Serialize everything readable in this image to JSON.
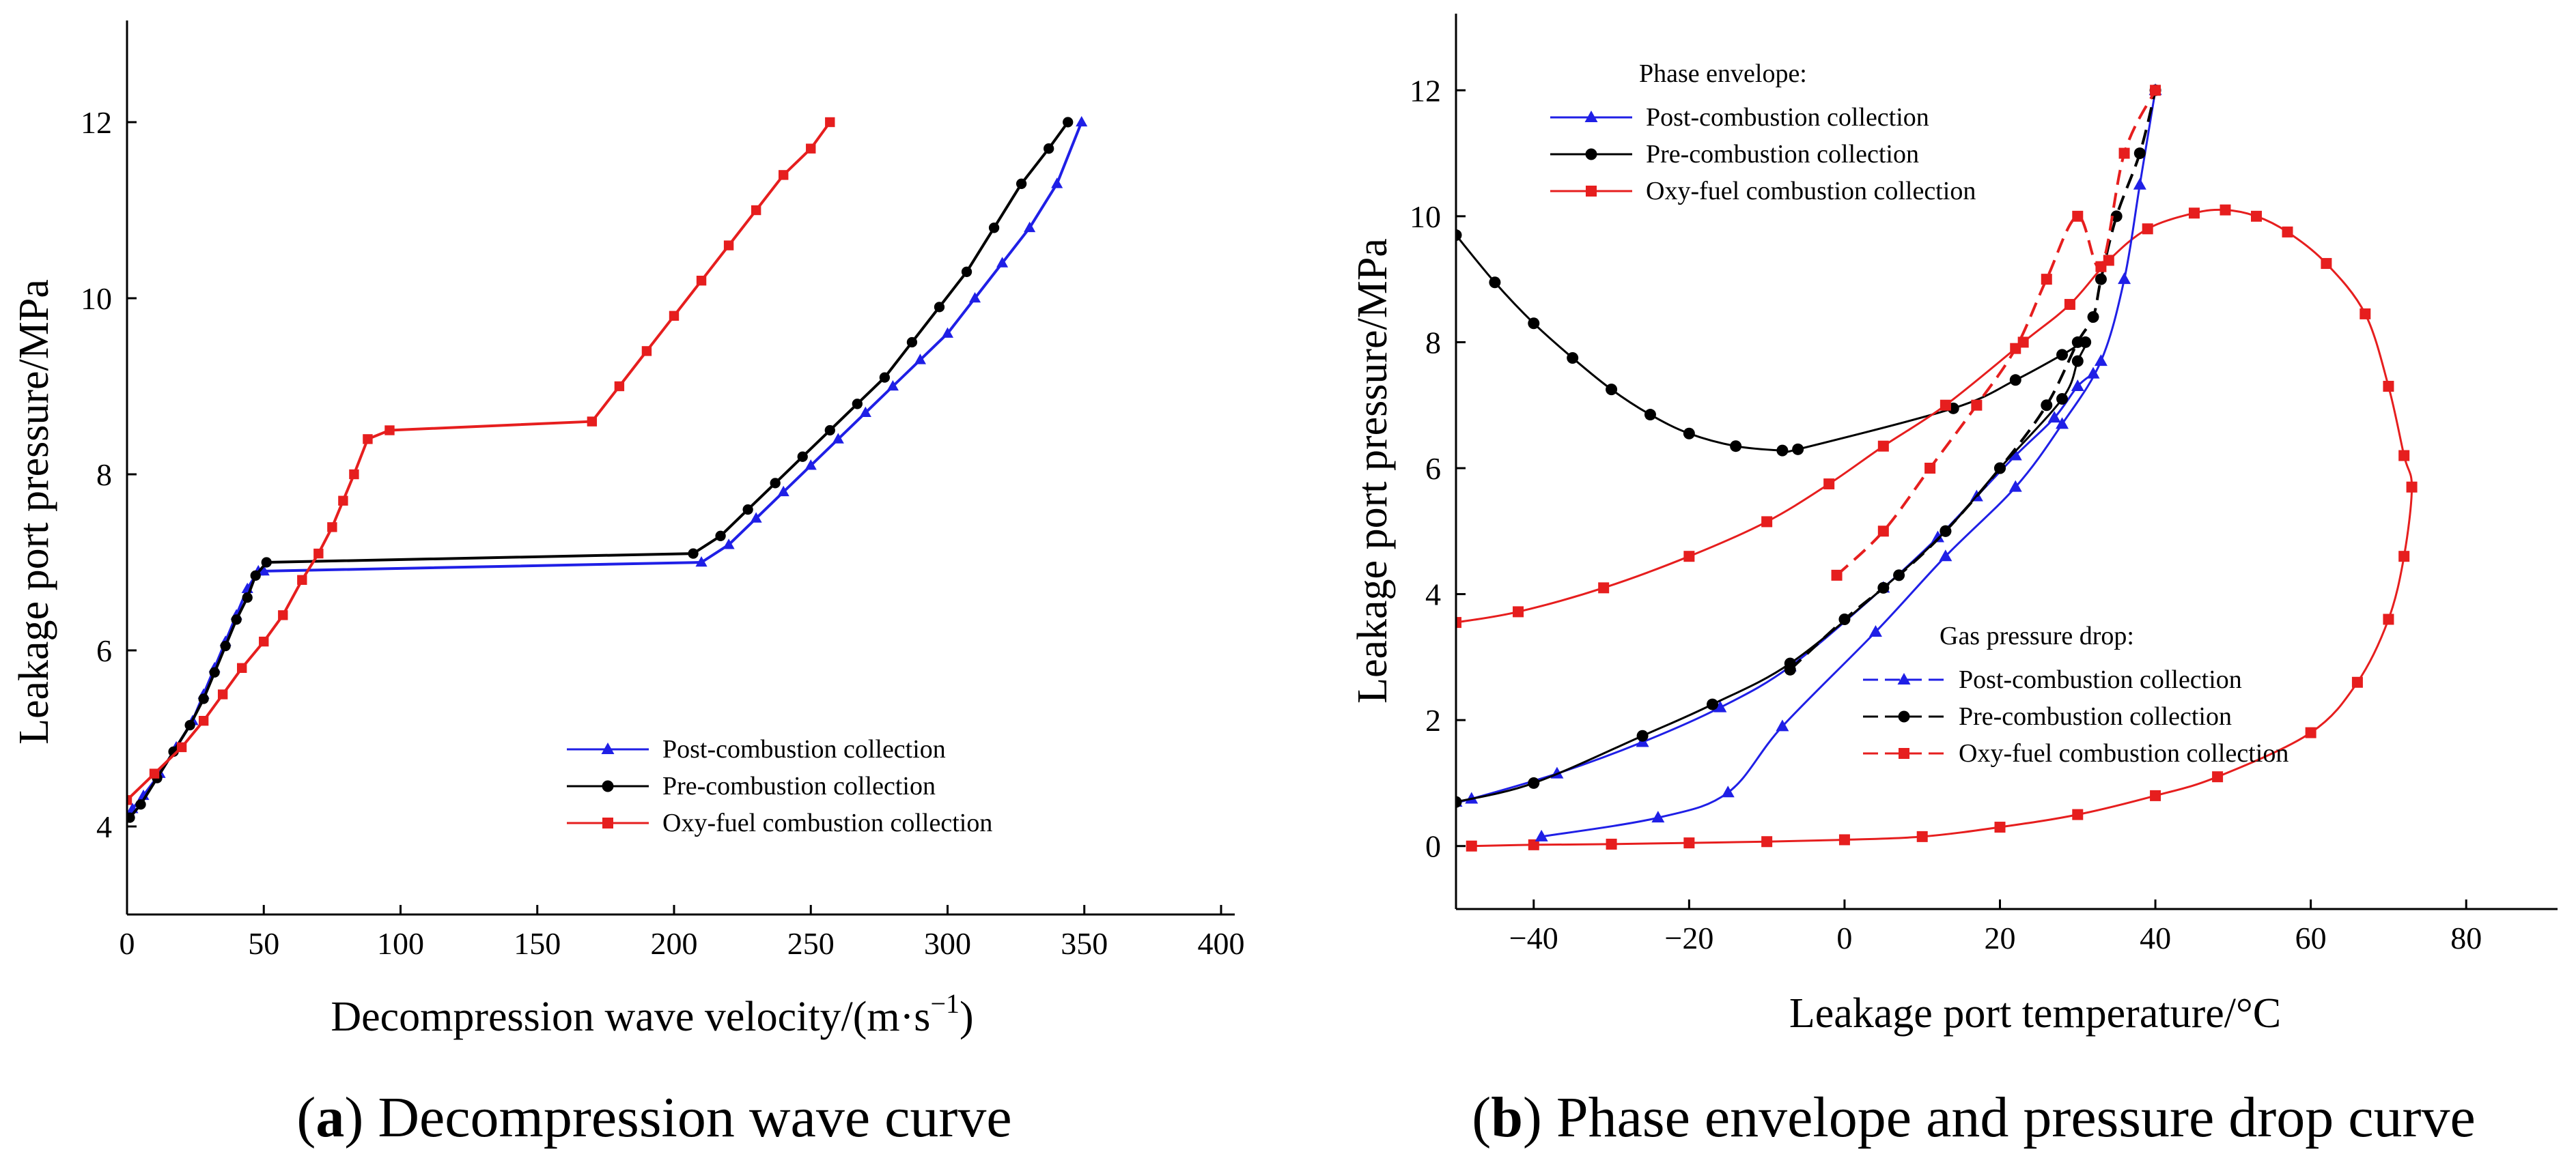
{
  "chart_data": [
    {
      "type": "line",
      "caption_bold": "a",
      "caption_rest": " Decompression wave curve",
      "xlabel": "Decompression wave velocity/(m·s",
      "xlabel_sup": "−1",
      "xlabel_end": ")",
      "ylabel": "Leakage port pressure/MPa",
      "xlim": [
        0,
        400
      ],
      "ylim": [
        3,
        13
      ],
      "xticks": [
        "0",
        "50",
        "100",
        "150",
        "200",
        "250",
        "300",
        "350",
        "400"
      ],
      "yticks": [
        "4",
        "6",
        "8",
        "10",
        "12"
      ],
      "legend_position": "lower-right",
      "series": [
        {
          "name": "Post-combustion collection",
          "color": "#1f1fe6",
          "marker": "triangle",
          "x": [
            2,
            6,
            12,
            18,
            24,
            28,
            32,
            36,
            40,
            44,
            48,
            50,
            210,
            220,
            230,
            240,
            250,
            260,
            270,
            280,
            290,
            300,
            310,
            320,
            330,
            340,
            349
          ],
          "y": [
            4.2,
            4.35,
            4.6,
            4.9,
            5.2,
            5.5,
            5.8,
            6.1,
            6.4,
            6.7,
            6.9,
            6.9,
            7.0,
            7.2,
            7.5,
            7.8,
            8.1,
            8.4,
            8.7,
            9.0,
            9.3,
            9.6,
            10.0,
            10.4,
            10.8,
            11.3,
            12.0
          ]
        },
        {
          "name": "Pre-combustion collection",
          "color": "#000000",
          "marker": "circle",
          "x": [
            1,
            5,
            11,
            17,
            23,
            28,
            32,
            36,
            40,
            44,
            47,
            51,
            207,
            217,
            227,
            237,
            247,
            257,
            267,
            277,
            287,
            297,
            307,
            317,
            327,
            337,
            344
          ],
          "y": [
            4.1,
            4.25,
            4.55,
            4.85,
            5.15,
            5.45,
            5.75,
            6.05,
            6.35,
            6.6,
            6.85,
            7.0,
            7.1,
            7.3,
            7.6,
            7.9,
            8.2,
            8.5,
            8.8,
            9.1,
            9.5,
            9.9,
            10.3,
            10.8,
            11.3,
            11.7,
            12.0
          ]
        },
        {
          "name": "Oxy-fuel combustion collection",
          "color": "#e61e1e",
          "marker": "square",
          "x": [
            0,
            10,
            20,
            28,
            35,
            42,
            50,
            57,
            64,
            70,
            75,
            79,
            83,
            88,
            96,
            170,
            180,
            190,
            200,
            210,
            220,
            230,
            240,
            250,
            257
          ],
          "y": [
            4.3,
            4.6,
            4.9,
            5.2,
            5.5,
            5.8,
            6.1,
            6.4,
            6.8,
            7.1,
            7.4,
            7.7,
            8.0,
            8.4,
            8.5,
            8.6,
            9.0,
            9.4,
            9.8,
            10.2,
            10.6,
            11.0,
            11.4,
            11.7,
            12.0
          ]
        }
      ]
    },
    {
      "type": "line",
      "caption_bold": "b",
      "caption_rest": " Phase envelope and pressure drop curve",
      "xlabel": "Leakage port temperature/°C",
      "ylabel": "Leakage port pressure/MPa",
      "xlim": [
        -50,
        90
      ],
      "ylim": [
        -1,
        13
      ],
      "xticks": [
        "−40",
        "−20",
        "0",
        "20",
        "40",
        "60",
        "80"
      ],
      "yticks": [
        "0",
        "2",
        "4",
        "6",
        "8",
        "10",
        "12"
      ],
      "legend_phase_title": "Phase envelope:",
      "legend_gas_title": "Gas pressure drop:",
      "phase_envelope": [
        {
          "name": "Post-combustion collection",
          "color": "#1f1fe6",
          "marker": "triangle",
          "x": [
            -50,
            -48,
            -37,
            -26,
            -16,
            -7,
            5,
            12,
            17,
            22,
            27,
            30,
            32
          ],
          "y": [
            0.7,
            0.75,
            1.15,
            1.65,
            2.2,
            2.85,
            4.1,
            4.9,
            5.55,
            6.2,
            6.8,
            7.3,
            7.5
          ]
        },
        {
          "name": "Pre-combustion collection",
          "color": "#000000",
          "marker": "circle",
          "x": [
            -50,
            -45,
            -40,
            -35,
            -30,
            -25,
            -20,
            -14,
            -8,
            -6,
            14,
            22,
            28,
            31,
            30,
            28,
            20,
            13,
            5,
            -7,
            -17,
            -26,
            -40,
            -50
          ],
          "y": [
            9.7,
            8.95,
            8.3,
            7.75,
            7.25,
            6.85,
            6.55,
            6.35,
            6.28,
            6.3,
            6.95,
            7.4,
            7.8,
            8.0,
            7.7,
            7.1,
            6.0,
            5.0,
            4.1,
            2.9,
            2.25,
            1.75,
            1.0,
            0.7
          ]
        },
        {
          "name": "Oxy-fuel combustion collection",
          "color": "#e61e1e",
          "marker": "square",
          "x": [
            -50,
            -42,
            -31,
            -20,
            -10,
            -2,
            5,
            13,
            23,
            29,
            34,
            39,
            45,
            49,
            53,
            57,
            62,
            67,
            70,
            72,
            73,
            72,
            70,
            66,
            60,
            48,
            40,
            30,
            20,
            10,
            0,
            -10,
            -20,
            -30,
            -40,
            -48
          ],
          "y": [
            3.55,
            3.72,
            4.1,
            4.6,
            5.15,
            5.75,
            6.35,
            7.0,
            8.0,
            8.6,
            9.3,
            9.8,
            10.05,
            10.1,
            10.0,
            9.75,
            9.25,
            8.45,
            7.3,
            6.2,
            5.7,
            4.6,
            3.6,
            2.6,
            1.8,
            1.1,
            0.8,
            0.5,
            0.3,
            0.15,
            0.1,
            0.07,
            0.05,
            0.03,
            0.02,
            0.0
          ]
        }
      ],
      "gas_pressure_drop": [
        {
          "name": "Post-combustion collection",
          "color": "#1f1fe6",
          "marker": "triangle",
          "x": [
            -39,
            -24,
            -15,
            -8,
            4,
            13,
            22,
            28,
            33,
            36,
            38,
            40
          ],
          "y": [
            0.15,
            0.45,
            0.85,
            1.9,
            3.4,
            4.6,
            5.7,
            6.7,
            7.7,
            9.0,
            10.5,
            12.0
          ]
        },
        {
          "name": "Pre-combustion collection",
          "color": "#000000",
          "marker": "circle",
          "x": [
            -7,
            0,
            7,
            13,
            20,
            26,
            30,
            32,
            33,
            35,
            38,
            40
          ],
          "y": [
            2.8,
            3.6,
            4.3,
            5.0,
            6.0,
            7.0,
            8.0,
            8.4,
            9.0,
            10.0,
            11.0,
            12.0
          ]
        },
        {
          "name": "Oxy-fuel combustion collection",
          "color": "#e61e1e",
          "marker": "square",
          "x": [
            -1,
            5,
            11,
            17,
            22,
            26,
            30,
            33,
            36,
            40
          ],
          "y": [
            4.3,
            5.0,
            6.0,
            7.0,
            7.9,
            9.0,
            10.0,
            9.2,
            11.0,
            12.0
          ]
        }
      ]
    }
  ]
}
